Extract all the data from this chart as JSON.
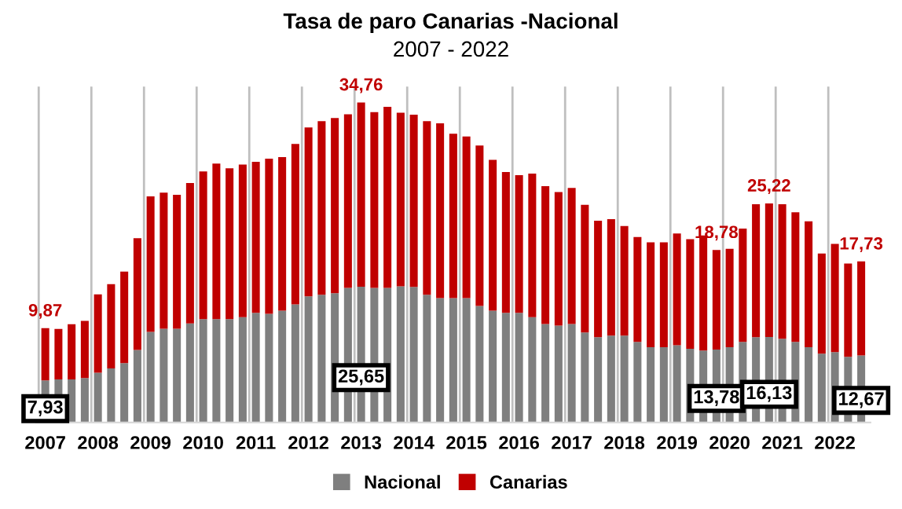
{
  "chart_data": {
    "type": "bar",
    "stacked": true,
    "title": "Tasa de paro Canarias -Nacional",
    "subtitle": "2007 - 2022",
    "categories": [
      "2007",
      null,
      null,
      null,
      "2008",
      null,
      null,
      null,
      "2009",
      null,
      null,
      null,
      "2010",
      null,
      null,
      null,
      "2011",
      null,
      null,
      null,
      "2012",
      null,
      null,
      null,
      "2013",
      null,
      null,
      null,
      "2014",
      null,
      null,
      null,
      "2015",
      null,
      null,
      null,
      "2016",
      null,
      null,
      null,
      "2017",
      null,
      null,
      null,
      "2018",
      null,
      null,
      null,
      "2019",
      null,
      null,
      null,
      "2020",
      null,
      null,
      null,
      "2021",
      null,
      null,
      null,
      "2022",
      null,
      null
    ],
    "series": [
      {
        "name": "Nacional",
        "color": "#7f7f7f",
        "values": [
          7.93,
          8.15,
          8.15,
          8.4,
          9.4,
          10.2,
          11.2,
          13.7,
          17.1,
          17.7,
          17.7,
          18.7,
          19.5,
          19.5,
          19.5,
          19.9,
          20.7,
          20.5,
          21.1,
          22.3,
          23.8,
          24.1,
          24.4,
          25.4,
          25.65,
          25.4,
          25.4,
          25.7,
          25.6,
          24.1,
          23.5,
          23.5,
          23.5,
          22.0,
          21.1,
          20.7,
          20.7,
          19.9,
          18.6,
          18.3,
          18.6,
          17.0,
          16.1,
          16.4,
          16.4,
          15.2,
          14.2,
          14.2,
          14.6,
          13.9,
          13.6,
          13.78,
          14.2,
          15.2,
          16.1,
          16.13,
          15.8,
          15.2,
          14.2,
          13.0,
          13.3,
          12.4,
          12.67
        ],
        "value_labels": [
          "7,93",
          null,
          null,
          null,
          null,
          null,
          null,
          null,
          null,
          null,
          null,
          null,
          null,
          null,
          null,
          null,
          null,
          null,
          null,
          null,
          null,
          null,
          null,
          null,
          "25,65",
          null,
          null,
          null,
          null,
          null,
          null,
          null,
          null,
          null,
          null,
          null,
          null,
          null,
          null,
          null,
          null,
          null,
          null,
          null,
          null,
          null,
          null,
          null,
          null,
          null,
          null,
          "13,78",
          null,
          null,
          null,
          "16,13",
          null,
          null,
          null,
          null,
          null,
          null,
          "12,67"
        ]
      },
      {
        "name": "Canarias",
        "color": "#c00000",
        "values": [
          9.87,
          9.5,
          10.4,
          10.8,
          14.8,
          15.9,
          17.3,
          21.1,
          25.6,
          25.7,
          25.3,
          26.5,
          27.9,
          29.4,
          28.5,
          28.8,
          28.5,
          29.3,
          29.0,
          30.3,
          31.9,
          32.8,
          33.1,
          32.8,
          34.76,
          33.2,
          34.2,
          32.8,
          32.5,
          32.8,
          33.0,
          31.0,
          30.5,
          30.3,
          28.5,
          26.6,
          26.0,
          27.1,
          26.0,
          25.2,
          25.7,
          24.1,
          22.0,
          22.0,
          20.7,
          19.8,
          19.8,
          19.8,
          21.1,
          20.7,
          21.7,
          18.78,
          18.6,
          21.4,
          25.1,
          25.22,
          25.4,
          24.5,
          23.8,
          18.9,
          20.4,
          17.6,
          17.73
        ],
        "value_labels": [
          "9,87",
          null,
          null,
          null,
          null,
          null,
          null,
          null,
          null,
          null,
          null,
          null,
          null,
          null,
          null,
          null,
          null,
          null,
          null,
          null,
          null,
          null,
          null,
          null,
          "34,76",
          null,
          null,
          null,
          null,
          null,
          null,
          null,
          null,
          null,
          null,
          null,
          null,
          null,
          null,
          null,
          null,
          null,
          null,
          null,
          null,
          null,
          null,
          null,
          null,
          null,
          null,
          "18,78",
          null,
          null,
          null,
          "25,22",
          null,
          null,
          null,
          null,
          null,
          null,
          "17,73"
        ]
      }
    ],
    "grid": "x",
    "legend": "bottom",
    "tick_labels": "x"
  }
}
